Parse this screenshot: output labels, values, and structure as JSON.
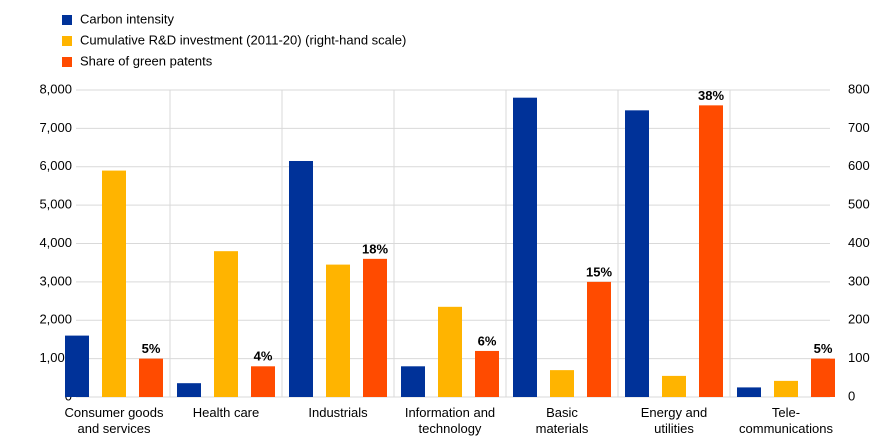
{
  "chart_data": {
    "type": "bar",
    "categories": [
      [
        "Consumer goods",
        "and services"
      ],
      [
        "Health care"
      ],
      [
        "Industrials"
      ],
      [
        "Information and",
        "technology"
      ],
      [
        "Basic",
        "materials"
      ],
      [
        "Energy and",
        "utilities"
      ],
      [
        "Tele-",
        "communications"
      ]
    ],
    "series": [
      {
        "name": "Carbon intensity",
        "color": "#003299",
        "values": [
          1600,
          360,
          6150,
          800,
          7800,
          7470,
          250
        ]
      },
      {
        "name": "Cumulative R&D investment (2011-20) (right-hand scale)",
        "color": "#ffb400",
        "axis": "y2",
        "values": [
          590,
          380,
          345,
          235,
          70,
          55,
          42
        ]
      },
      {
        "name": "Share of green patents",
        "color": "#ff4b00",
        "axis": "share",
        "values": [
          5,
          4,
          18,
          6,
          15,
          38,
          5
        ],
        "value_labels": [
          "5%",
          "4%",
          "18%",
          "6%",
          "15%",
          "38%",
          "5%"
        ]
      }
    ],
    "ylim": [
      0,
      8000
    ],
    "yticks": [
      0,
      {
        "value": 1000,
        "label": "1,000"
      },
      {
        "value": 2000,
        "label": "2,000"
      },
      {
        "value": 3000,
        "label": "3,000"
      },
      {
        "value": 4000,
        "label": "4,000"
      },
      {
        "value": 5000,
        "label": "5,000"
      },
      {
        "value": 6000,
        "label": "6,000"
      },
      {
        "value": 7000,
        "label": "7,000"
      },
      {
        "value": 8000,
        "label": "8,000"
      }
    ],
    "y2lim": [
      0,
      800
    ],
    "y2ticks": [
      0,
      100,
      200,
      300,
      400,
      500,
      600,
      700,
      800
    ],
    "grid": true
  }
}
